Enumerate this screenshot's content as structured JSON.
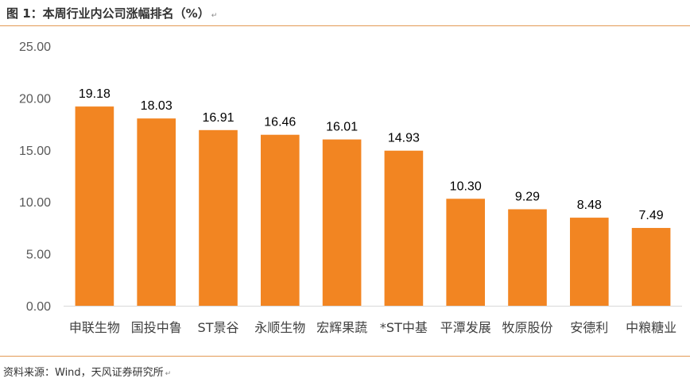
{
  "title": "图 1：本周行业内公司涨幅排名（%）",
  "title_mark": "↵",
  "source": "资料来源：Wind，天风证券研究所",
  "source_mark": "↵",
  "chart_data": {
    "type": "bar",
    "title": "图 1：本周行业内公司涨幅排名（%）",
    "xlabel": "",
    "ylabel": "",
    "ylim": [
      0,
      25
    ],
    "yticks": [
      "0.00",
      "5.00",
      "10.00",
      "15.00",
      "20.00",
      "25.00"
    ],
    "categories": [
      "申联生物",
      "国投中鲁",
      "ST景谷",
      "永顺生物",
      "宏辉果蔬",
      "*ST中基",
      "平潭发展",
      "牧原股份",
      "安德利",
      "中粮糖业"
    ],
    "values": [
      19.18,
      18.03,
      16.91,
      16.46,
      16.01,
      14.93,
      10.3,
      9.29,
      8.48,
      7.49
    ],
    "value_labels": [
      "19.18",
      "18.03",
      "16.91",
      "16.46",
      "16.01",
      "14.93",
      "10.30",
      "9.29",
      "8.48",
      "7.49"
    ],
    "bar_color": "#f28522",
    "axis_color": "#d9d9d9",
    "grid": false,
    "legend": "none"
  }
}
